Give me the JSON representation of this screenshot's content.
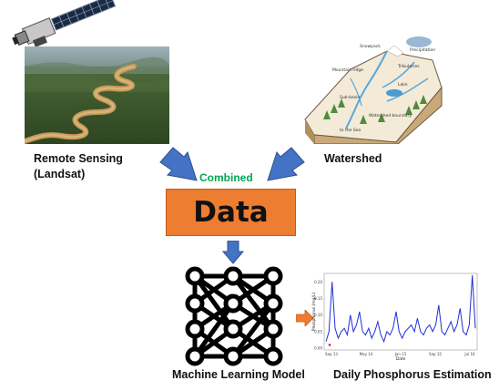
{
  "labels": {
    "remote_sensing_line1": "Remote Sensing",
    "remote_sensing_line2": "(Landsat)",
    "watershed": "Watershed",
    "combined": "Combined",
    "data": "Data",
    "ml_model": "Machine Learning Model",
    "daily_estimation": "Daily Phosphorus Estimation"
  },
  "watershed_diagram": {
    "labels": [
      "Snowpack",
      "Precipitation",
      "Tributaries",
      "Mountain ridge",
      "Lake",
      "Sub-basin",
      "Watershed boundary",
      "to the Sea"
    ]
  },
  "colors": {
    "arrow_blue": "#4472c4",
    "arrow_orange": "#ed7d31",
    "data_box": "#ed7d31",
    "combined_text": "#00a651",
    "series_line": "#1f2fd6"
  },
  "chart_data": {
    "type": "line",
    "xlabel": "Date",
    "ylabel": "Phosphorus (mg/L)",
    "x_tick_labels": [
      "Sep 13",
      "May 14",
      "Jan 15",
      "Sep 15",
      "Jul 16"
    ],
    "y_tick_labels": [
      "0.00",
      "0.05",
      "0.10",
      "0.15",
      "0.20"
    ],
    "ylim": [
      0,
      0.22
    ],
    "series": [
      {
        "values": [
          0.02,
          0.05,
          0.2,
          0.06,
          0.03,
          0.05,
          0.06,
          0.04,
          0.1,
          0.05,
          0.07,
          0.11,
          0.05,
          0.04,
          0.06,
          0.03,
          0.05,
          0.08,
          0.04,
          0.02,
          0.05,
          0.04,
          0.06,
          0.11,
          0.05,
          0.03,
          0.05,
          0.06,
          0.07,
          0.05,
          0.09,
          0.05,
          0.04,
          0.06,
          0.07,
          0.05,
          0.07,
          0.13,
          0.05,
          0.04,
          0.06,
          0.08,
          0.05,
          0.07,
          0.12,
          0.05,
          0.04,
          0.07,
          0.22,
          0.06
        ],
        "markers": [
          0.01
        ]
      }
    ]
  }
}
